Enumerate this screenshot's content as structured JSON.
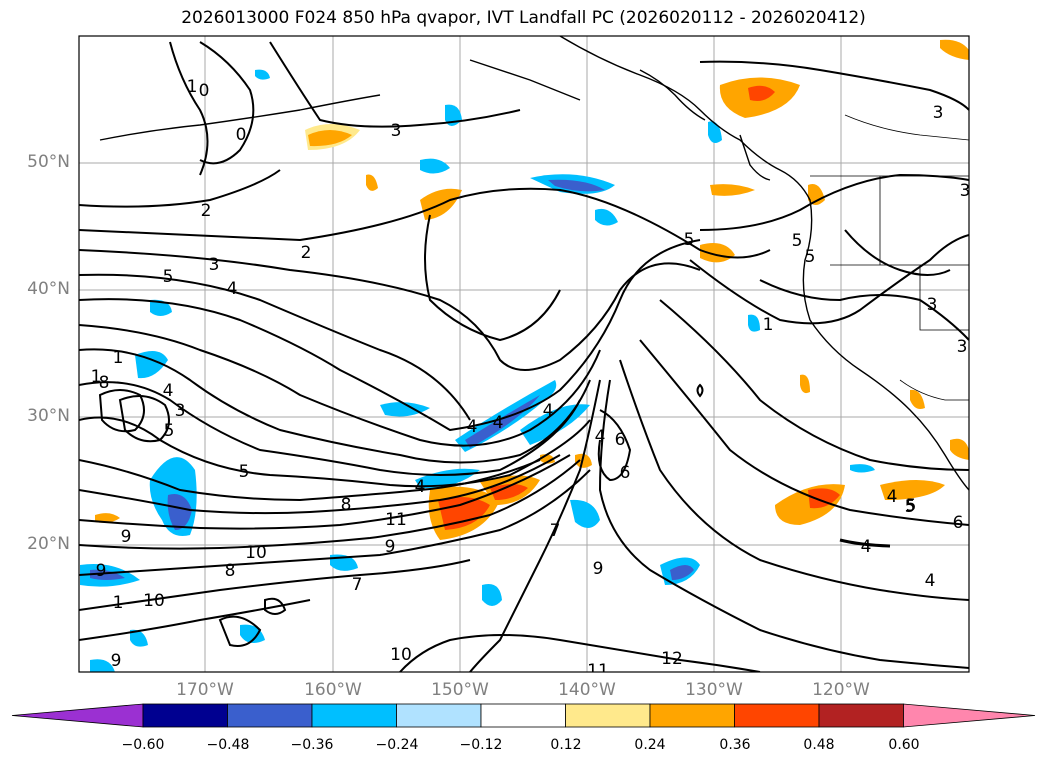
{
  "title": "2026013000 F024 850 hPa qvapor, IVT Landfall PC (2026020112 - 2026020412)",
  "map": {
    "lat_labels": [
      "50°N",
      "40°N",
      "30°N",
      "20°N"
    ],
    "lon_labels": [
      "170°W",
      "160°W",
      "150°W",
      "140°W",
      "130°W",
      "120°W"
    ],
    "contour_labels": [
      "1",
      "0",
      "0",
      "3",
      "2",
      "2",
      "3",
      "4",
      "5",
      "5",
      "4",
      "4",
      "1",
      "1",
      "8",
      "4",
      "3",
      "5",
      "5",
      "4",
      "4",
      "4",
      "6",
      "6",
      "5",
      "9",
      "8",
      "11",
      "10",
      "9",
      "8",
      "10",
      "9",
      "7",
      "10",
      "9",
      "1",
      "7",
      "9",
      "11",
      "12",
      "5",
      "4",
      "5",
      "6",
      "4",
      "4",
      "3",
      "3",
      "1",
      "3",
      "3",
      "5"
    ]
  },
  "colorbar": {
    "ticks": [
      "−0.60",
      "−0.48",
      "−0.36",
      "−0.24",
      "−0.12",
      "0.12",
      "0.24",
      "0.36",
      "0.48",
      "0.60"
    ],
    "colors": [
      "#9b30d2",
      "#000090",
      "#3a5fcd",
      "#00bfff",
      "#b0e2ff",
      "#ffffff",
      "#ffe98c",
      "#ffa500",
      "#ff4500",
      "#b22222",
      "#ff86ad"
    ]
  }
}
